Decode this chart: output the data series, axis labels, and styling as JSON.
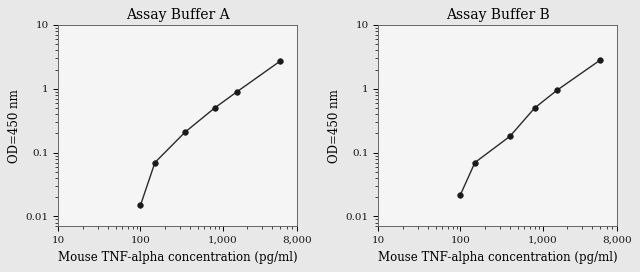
{
  "title_A": "Assay Buffer A",
  "title_B": "Assay Buffer B",
  "xlabel": "Mouse TNF-alpha concentration (pg/ml)",
  "ylabel": "OD=450 nm",
  "xA": [
    100,
    150,
    350,
    800,
    1500,
    5000
  ],
  "yA": [
    0.015,
    0.07,
    0.21,
    0.5,
    0.9,
    2.7
  ],
  "xB": [
    100,
    150,
    400,
    800,
    1500,
    5000
  ],
  "yB": [
    0.022,
    0.07,
    0.18,
    0.5,
    0.95,
    2.8
  ],
  "xlim": [
    10,
    8000
  ],
  "ylim": [
    0.007,
    10
  ],
  "line_color": "#2a2a2a",
  "marker_color": "#1a1a1a",
  "fig_bg": "#e8e8e8",
  "plot_bg": "#f5f5f5",
  "title_fontsize": 10,
  "label_fontsize": 8.5,
  "tick_fontsize": 7.5
}
